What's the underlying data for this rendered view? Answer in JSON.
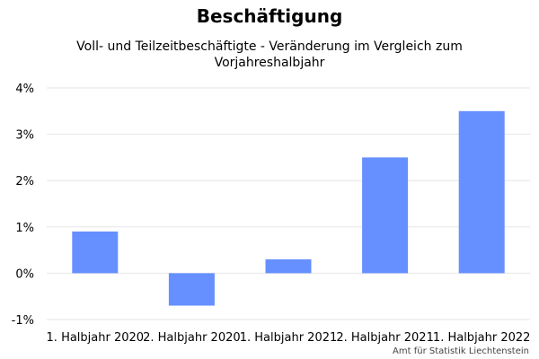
{
  "chart_data": {
    "type": "bar",
    "title": "Beschäftigung",
    "subtitle": "Voll- und Teilzeitbeschäftigte - Veränderung im Vergleich zum Vorjahreshalbjahr",
    "categories": [
      "1. Halbjahr 2020",
      "2. Halbjahr 2020",
      "1. Halbjahr 2021",
      "2. Halbjahr 2021",
      "1. Halbjahr 2022"
    ],
    "values": [
      0.9,
      -0.7,
      0.3,
      2.5,
      3.5
    ],
    "ylim": [
      -1,
      4
    ],
    "yticks": [
      -1,
      0,
      1,
      2,
      3,
      4
    ],
    "ytick_labels": [
      "-1%",
      "0%",
      "1%",
      "2%",
      "3%",
      "4%"
    ],
    "grid": true,
    "bar_color": "#6690ff",
    "grid_color": "#e6e6e6",
    "source": "Amt für Statistik Liechtenstein"
  }
}
